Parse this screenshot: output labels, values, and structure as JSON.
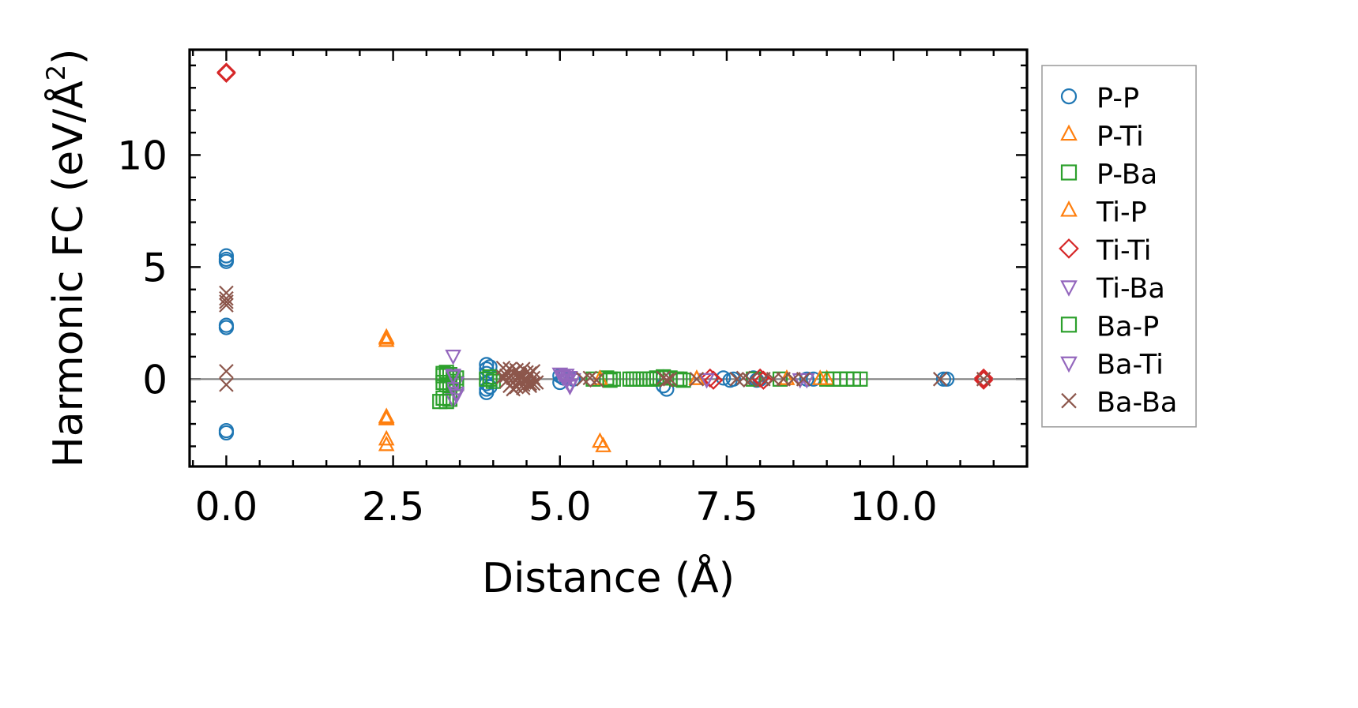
{
  "chart_data": {
    "type": "scatter",
    "xlabel": "Distance (Å)",
    "ylabel": "Harmonic FC (eV/Å²)",
    "ylabel_main": "Harmonic FC (eV/Å",
    "ylabel_sup": "2",
    "ylabel_end": ")",
    "xlim": [
      -0.55,
      12.0
    ],
    "ylim": [
      -3.9,
      14.7
    ],
    "x_ticks": [
      0.0,
      2.5,
      5.0,
      7.5,
      10.0
    ],
    "x_tick_labels": [
      "0.0",
      "2.5",
      "5.0",
      "7.5",
      "10.0"
    ],
    "x_minor_step": 0.5,
    "y_ticks": [
      0,
      5,
      10
    ],
    "y_tick_labels": [
      "0",
      "5",
      "10"
    ],
    "y_minor_step": 1,
    "zero_line": true,
    "grid": false,
    "legend_position": "outside right",
    "series": [
      {
        "name": "P-P",
        "marker": "circle",
        "color": "#1f77b4",
        "x": [
          0,
          0,
          0,
          0,
          0,
          0,
          0,
          3.9,
          3.9,
          3.9,
          3.9,
          3.9,
          3.9,
          3.95,
          3.95,
          5.0,
          5.0,
          5.05,
          5.2,
          6.55,
          6.55,
          6.6,
          7.45,
          7.55,
          7.6,
          7.9,
          7.95,
          8.0,
          8.7,
          8.8,
          10.75,
          10.8,
          11.35
        ],
        "y": [
          5.5,
          5.35,
          5.25,
          2.4,
          2.3,
          -2.3,
          -2.4,
          0.65,
          0.45,
          0.25,
          -0.2,
          -0.45,
          -0.6,
          0.55,
          -0.35,
          0.15,
          -0.15,
          0.05,
          0.0,
          0.1,
          -0.3,
          -0.45,
          0.05,
          -0.05,
          0.0,
          0.05,
          -0.05,
          0.0,
          0.0,
          0.0,
          0.0,
          0.0,
          0.0
        ]
      },
      {
        "name": "P-Ti",
        "marker": "triangle-up",
        "color": "#ff7f0e",
        "x": [
          2.4,
          2.4,
          2.4,
          2.4,
          2.4,
          5.6,
          5.65,
          7.05,
          8.4,
          9.0
        ],
        "y": [
          1.8,
          1.7,
          -1.7,
          -1.8,
          -2.7,
          -2.8,
          -3.0,
          0.0,
          0.0,
          0.0
        ]
      },
      {
        "name": "P-Ba",
        "marker": "square",
        "color": "#2ca02c",
        "x": [
          3.25,
          3.25,
          3.3,
          3.35,
          3.4,
          3.45,
          3.25,
          3.3,
          3.35,
          3.4,
          3.45,
          3.2,
          3.25,
          3.35,
          3.9,
          3.95,
          4.0,
          5.5,
          5.7,
          5.75,
          5.8,
          6.05,
          6.15,
          6.25,
          6.35,
          6.45,
          6.55,
          6.65,
          6.75,
          6.85,
          7.9,
          8.3,
          9.0,
          9.1,
          9.2,
          9.3,
          9.4,
          9.5
        ],
        "y": [
          0.25,
          0.15,
          0.3,
          0.2,
          0.1,
          0.05,
          -0.15,
          -0.25,
          -0.3,
          -0.1,
          -0.2,
          -1.0,
          -0.85,
          -0.9,
          0.0,
          0.1,
          -0.1,
          0.0,
          0.05,
          -0.05,
          0.0,
          0.0,
          0.0,
          0.0,
          0.0,
          0.05,
          0.1,
          0.05,
          0.0,
          -0.05,
          0.0,
          0.0,
          0.0,
          0.0,
          0.0,
          0.0,
          0.0,
          0.0
        ]
      },
      {
        "name": "Ti-P",
        "marker": "triangle-up",
        "color": "#ff7f0e",
        "x": [
          2.4,
          2.4,
          2.4,
          5.6,
          7.05,
          8.4,
          8.9
        ],
        "y": [
          1.85,
          -1.75,
          -2.95,
          0.0,
          0.0,
          0.0,
          0.0
        ]
      },
      {
        "name": "Ti-Ti",
        "marker": "diamond",
        "color": "#d62728",
        "x": [
          0,
          0,
          7.25,
          7.3,
          8.0,
          8.05,
          11.35,
          11.35
        ],
        "y": [
          13.7,
          13.65,
          0.05,
          -0.05,
          0.05,
          -0.05,
          0.05,
          -0.05
        ]
      },
      {
        "name": "Ti-Ba",
        "marker": "triangle-down",
        "color": "#9467bd",
        "x": [
          3.4,
          3.4,
          3.45,
          3.4,
          3.45,
          3.4,
          5.0,
          5.05,
          5.1,
          5.1,
          5.15,
          5.15,
          5.2,
          7.2,
          8.6,
          8.7
        ],
        "y": [
          1.05,
          0.2,
          -0.15,
          -0.4,
          -0.6,
          -0.9,
          0.25,
          0.1,
          0.2,
          -0.05,
          0.1,
          -0.3,
          0.0,
          0.0,
          0.0,
          0.0
        ]
      },
      {
        "name": "Ba-P",
        "marker": "square",
        "color": "#2ca02c",
        "x": [
          3.3,
          3.4,
          3.3,
          3.95,
          5.75,
          6.1,
          6.2,
          6.3,
          6.4,
          6.8,
          9.3
        ],
        "y": [
          0.2,
          -0.2,
          -1.0,
          0.0,
          0.0,
          0.0,
          0.0,
          0.0,
          0.0,
          0.0,
          0.0
        ]
      },
      {
        "name": "Ba-Ti",
        "marker": "triangle-down",
        "color": "#9467bd",
        "x": [
          3.4,
          3.45,
          5.05,
          5.1,
          5.15,
          7.2
        ],
        "y": [
          0.15,
          -0.7,
          0.15,
          0.0,
          -0.25,
          0.0
        ]
      },
      {
        "name": "Ba-Ba",
        "marker": "x",
        "color": "#8c564b",
        "x": [
          0,
          0,
          0,
          0,
          0,
          0,
          4.15,
          4.2,
          4.25,
          4.3,
          4.35,
          4.4,
          4.45,
          4.5,
          4.55,
          4.6,
          4.15,
          4.2,
          4.3,
          4.4,
          4.5,
          4.6,
          4.2,
          4.3,
          4.4,
          4.5,
          4.6,
          4.25,
          4.35,
          4.45,
          4.55,
          4.65,
          4.3,
          4.45,
          4.55,
          5.35,
          5.45,
          5.55,
          6.55,
          6.6,
          6.65,
          7.05,
          7.65,
          7.75,
          7.85,
          8.05,
          8.2,
          8.35,
          8.5,
          8.65,
          10.7,
          11.35
        ],
        "y": [
          3.85,
          3.6,
          3.45,
          3.3,
          0.35,
          -0.25,
          0.5,
          0.35,
          0.45,
          0.3,
          0.4,
          0.2,
          0.45,
          0.3,
          0.25,
          0.35,
          0.1,
          0.15,
          0.05,
          0.1,
          0.0,
          0.05,
          -0.1,
          -0.15,
          -0.05,
          -0.1,
          -0.2,
          -0.3,
          -0.35,
          -0.25,
          -0.3,
          -0.15,
          -0.45,
          -0.4,
          -0.2,
          0.0,
          0.05,
          -0.05,
          0.05,
          -0.05,
          0.0,
          0.0,
          0.0,
          0.05,
          -0.05,
          0.0,
          0.0,
          0.0,
          0.0,
          0.0,
          0.0,
          0.0
        ]
      }
    ]
  }
}
